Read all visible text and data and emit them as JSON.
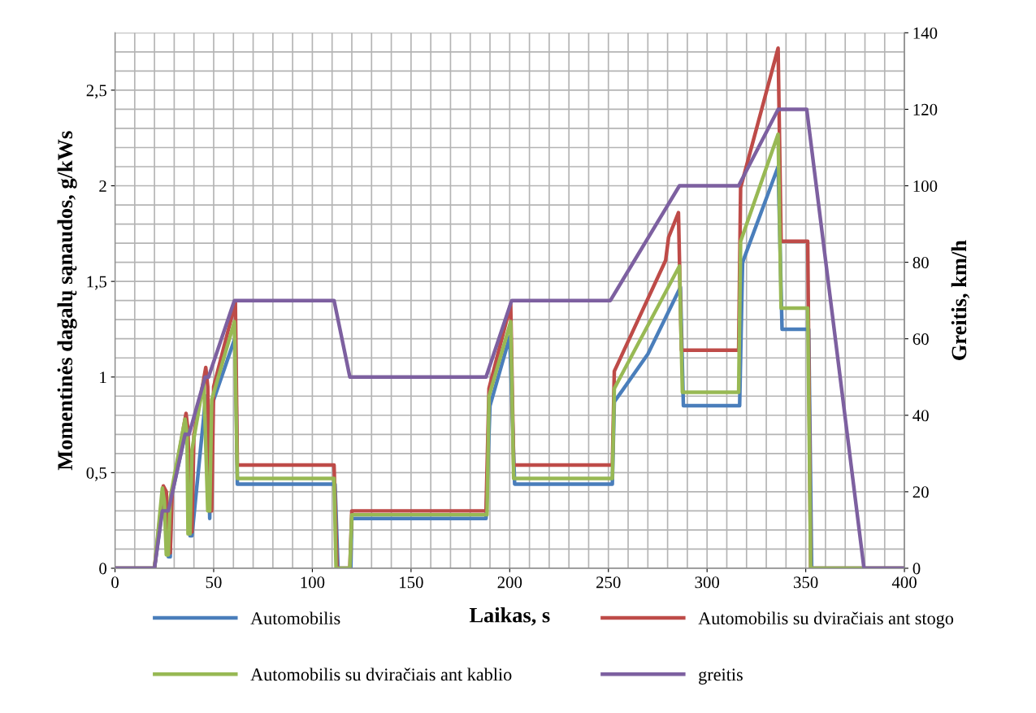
{
  "chart_data": {
    "type": "line",
    "xlabel": "Laikas, s",
    "ylabel": "Momentinės dagalų sąnaudos, g/kWs",
    "y2label": "Greitis, km/h",
    "xlim": [
      0,
      400
    ],
    "xticks": [
      0,
      {
        "value": 10,
        "label": null
      },
      {
        "value": 20,
        "label": null
      },
      {
        "value": 30,
        "label": null
      },
      {
        "value": 40,
        "label": null
      },
      50,
      {
        "value": 60,
        "label": null
      },
      {
        "value": 70,
        "label": null
      },
      {
        "value": 80,
        "label": null
      },
      {
        "value": 90,
        "label": null
      },
      100,
      {
        "value": 110,
        "label": null
      },
      {
        "value": 120,
        "label": null
      },
      {
        "value": 130,
        "label": null
      },
      {
        "value": 140,
        "label": null
      },
      150,
      {
        "value": 160,
        "label": null
      },
      {
        "value": 170,
        "label": null
      },
      {
        "value": 180,
        "label": null
      },
      {
        "value": 190,
        "label": null
      },
      200,
      {
        "value": 210,
        "label": null
      },
      {
        "value": 220,
        "label": null
      },
      {
        "value": 230,
        "label": null
      },
      {
        "value": 240,
        "label": null
      },
      250,
      {
        "value": 260,
        "label": null
      },
      {
        "value": 270,
        "label": null
      },
      {
        "value": 280,
        "label": null
      },
      {
        "value": 290,
        "label": null
      },
      300,
      {
        "value": 310,
        "label": null
      },
      {
        "value": 320,
        "label": null
      },
      {
        "value": 330,
        "label": null
      },
      {
        "value": 340,
        "label": null
      },
      350,
      {
        "value": 360,
        "label": null
      },
      {
        "value": 370,
        "label": null
      },
      {
        "value": 380,
        "label": null
      },
      {
        "value": 390,
        "label": null
      },
      400
    ],
    "ylim": [
      0,
      2.8
    ],
    "yticks": [
      0,
      {
        "value": 0.1,
        "label": null
      },
      {
        "value": 0.2,
        "label": null
      },
      {
        "value": 0.3,
        "label": null
      },
      {
        "value": 0.4,
        "label": null
      },
      {
        "value": 0.5,
        "label": "0,5"
      },
      {
        "value": 0.6,
        "label": null
      },
      {
        "value": 0.7,
        "label": null
      },
      {
        "value": 0.8,
        "label": null
      },
      {
        "value": 0.9,
        "label": null
      },
      1,
      {
        "value": 1.1,
        "label": null
      },
      {
        "value": 1.2,
        "label": null
      },
      {
        "value": 1.3,
        "label": null
      },
      {
        "value": 1.4,
        "label": null
      },
      {
        "value": 1.5,
        "label": "1,5"
      },
      {
        "value": 1.6,
        "label": null
      },
      {
        "value": 1.7,
        "label": null
      },
      {
        "value": 1.8,
        "label": null
      },
      {
        "value": 1.9,
        "label": null
      },
      2,
      {
        "value": 2.1,
        "label": null
      },
      {
        "value": 2.2,
        "label": null
      },
      {
        "value": 2.3,
        "label": null
      },
      {
        "value": 2.4,
        "label": null
      },
      {
        "value": 2.5,
        "label": "2,5"
      },
      {
        "value": 2.6,
        "label": null
      },
      {
        "value": 2.7,
        "label": null
      },
      {
        "value": 2.8,
        "label": null
      }
    ],
    "y2lim": [
      0,
      140
    ],
    "y2ticks": [
      0,
      20,
      40,
      60,
      80,
      100,
      120,
      140
    ],
    "grid": true,
    "legend": "bottom",
    "marker": "none",
    "line_style": "solid",
    "series": [
      {
        "name": "Automobilis",
        "color": "#4a7ebb",
        "x": [
          0,
          20,
          24.5,
          26,
          27,
          28,
          28.5,
          36,
          37,
          38,
          39,
          46,
          47,
          48,
          49,
          61,
          62,
          111.5,
          113,
          119.5,
          120,
          188,
          190,
          200,
          202.5,
          252,
          253,
          270,
          286.5,
          288,
          316.5,
          318,
          336,
          338,
          351.5,
          353,
          400
        ],
        "values": [
          0,
          0,
          0.35,
          0.33,
          0.06,
          0.06,
          0.37,
          0.72,
          0.65,
          0.17,
          0.17,
          0.9,
          0.85,
          0.26,
          0.85,
          1.21,
          0.44,
          0.44,
          0,
          0,
          0.26,
          0.26,
          0.85,
          1.21,
          0.44,
          0.44,
          0.87,
          1.12,
          1.47,
          0.85,
          0.85,
          1.6,
          2.1,
          1.25,
          1.25,
          0,
          0
        ]
      },
      {
        "name": "Automobilis su dviračiais ant stogo",
        "color": "#be4b48",
        "x": [
          0,
          20,
          24.5,
          26,
          27,
          28,
          29,
          36,
          37,
          38,
          39,
          40,
          46,
          47,
          48,
          49,
          50,
          61,
          62,
          111,
          112.5,
          119,
          120,
          188,
          189.5,
          200.5,
          202,
          252,
          253,
          279,
          280.5,
          285.5,
          287,
          316,
          317,
          336,
          337.5,
          351,
          352.5,
          400
        ],
        "values": [
          0,
          0,
          0.43,
          0.4,
          0.08,
          0.08,
          0.4,
          0.81,
          0.72,
          0.19,
          0.19,
          0.7,
          1.05,
          0.95,
          0.3,
          0.3,
          0.95,
          1.39,
          0.54,
          0.54,
          0,
          0,
          0.3,
          0.3,
          0.94,
          1.38,
          0.54,
          0.54,
          1.03,
          1.61,
          1.73,
          1.86,
          1.14,
          1.14,
          1.99,
          2.72,
          1.71,
          1.71,
          0,
          0
        ]
      },
      {
        "name": "Automobilis su dviračiais ant kablio",
        "color": "#98b954",
        "x": [
          0,
          20,
          24,
          25,
          26,
          27,
          28,
          35.5,
          36.5,
          37,
          38,
          39,
          45,
          47,
          48,
          49,
          60.5,
          62,
          111,
          112,
          119,
          120,
          188.5,
          189.5,
          200.5,
          202,
          252,
          253,
          286,
          287.5,
          316,
          317,
          336,
          337.5,
          351,
          352.5,
          400
        ],
        "values": [
          0,
          0,
          0.42,
          0.35,
          0.07,
          0.07,
          0.37,
          0.78,
          0.7,
          0.18,
          0.18,
          0.62,
          0.98,
          0.3,
          0.3,
          0.88,
          1.29,
          0.47,
          0.47,
          0,
          0,
          0.28,
          0.28,
          0.9,
          1.29,
          0.47,
          0.47,
          0.94,
          1.58,
          0.92,
          0.92,
          1.71,
          2.27,
          1.36,
          1.36,
          0,
          0
        ]
      },
      {
        "name": "greitis",
        "color": "#7d60a0",
        "axis": "y2",
        "x": [
          0,
          20,
          24,
          27,
          35.5,
          37.5,
          45.7,
          47.4,
          60.5,
          111,
          119,
          188,
          201,
          251,
          286,
          316,
          336,
          350.5,
          379.5,
          400
        ],
        "values": [
          0,
          0,
          15,
          15,
          35,
          35,
          50,
          50,
          70,
          70,
          50,
          50,
          70,
          70,
          100,
          100,
          120,
          120,
          0,
          0
        ]
      }
    ]
  }
}
